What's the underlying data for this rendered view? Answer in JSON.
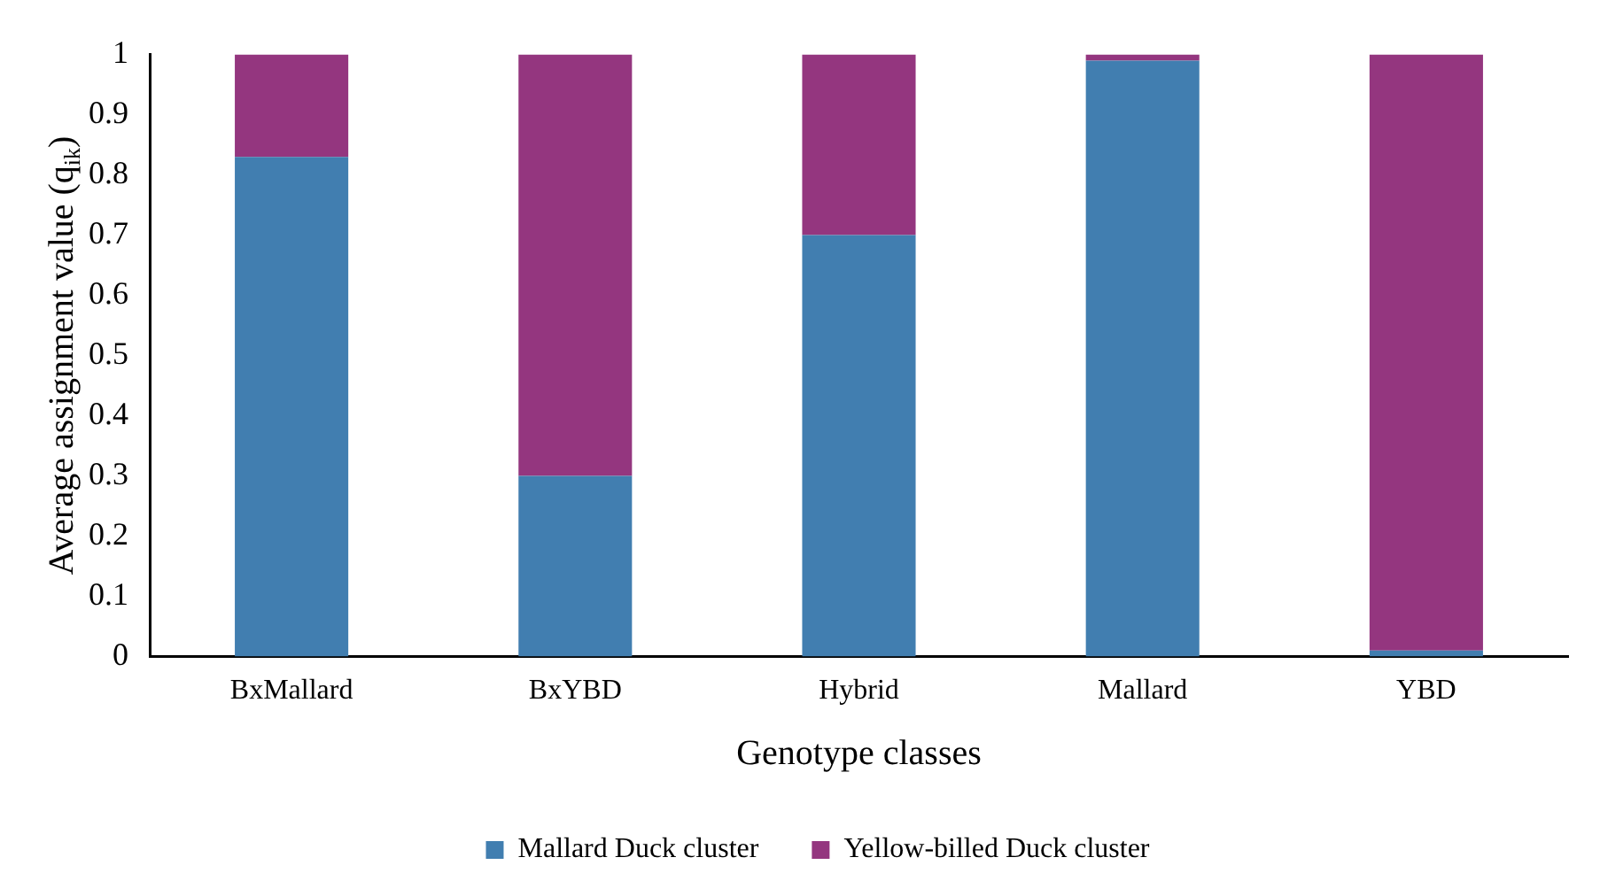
{
  "chart_data": {
    "type": "bar",
    "stacked": true,
    "xlabel": "Genotype classes",
    "ylabel": "Average assignment value (q$_{ik}$)",
    "categories": [
      "BxMallard",
      "BxYBD",
      "Hybrid",
      "Mallard",
      "YBD"
    ],
    "series": [
      {
        "name": "Mallard Duck cluster",
        "color": "#417eb0",
        "values": [
          0.83,
          0.3,
          0.7,
          0.99,
          0.01
        ]
      },
      {
        "name": "Yellow-billed Duck cluster",
        "color": "#94367f",
        "values": [
          0.17,
          0.7,
          0.3,
          0.01,
          0.99
        ]
      }
    ],
    "ylim": [
      0,
      1
    ],
    "yticks": [
      0,
      0.1,
      0.2,
      0.3,
      0.4,
      0.5,
      0.6,
      0.7,
      0.8,
      0.9,
      1
    ],
    "grid": false,
    "legend": "bottom"
  }
}
